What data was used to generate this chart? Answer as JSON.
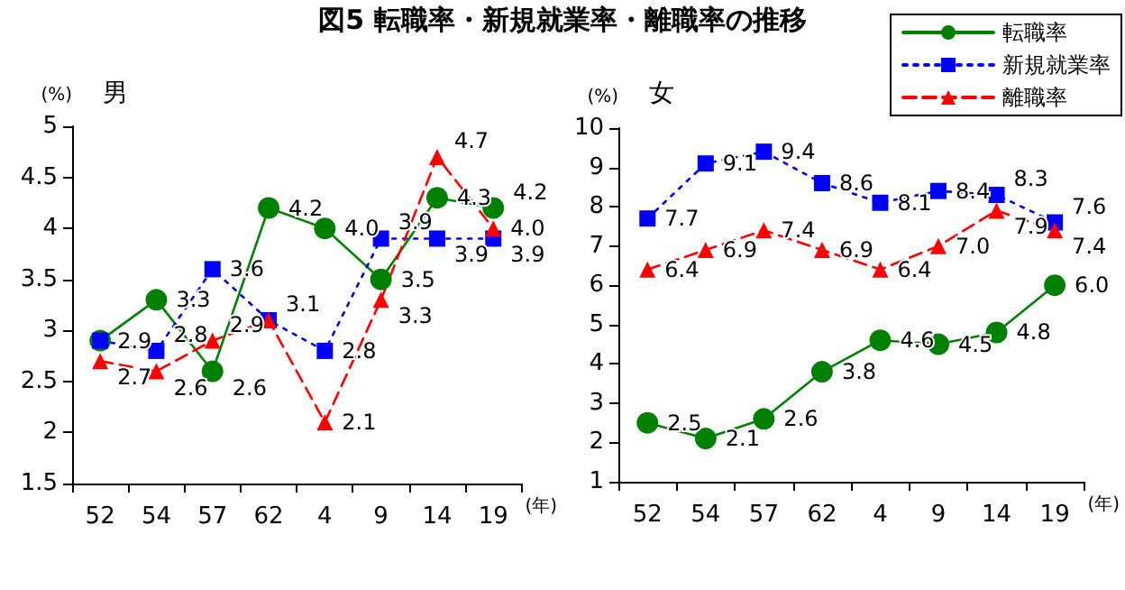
{
  "chart_data": [
    {
      "type": "line",
      "title": "図5 転職率・新規就業率・離職率の推移",
      "subtitle": "男",
      "ylabel": "(%)",
      "xlabel": "(年)",
      "categories": [
        "52",
        "54",
        "57",
        "62",
        "4",
        "9",
        "14",
        "19"
      ],
      "ylim": [
        1.5,
        5
      ],
      "yticks": [
        1.5,
        2,
        2.5,
        3,
        3.5,
        4,
        4.5,
        5
      ],
      "grid": false,
      "legend": false,
      "series": [
        {
          "color": "#008000",
          "marker": "circle",
          "line_style": "solid",
          "values": [
            2.9,
            3.3,
            2.6,
            4.2,
            4.0,
            3.5,
            4.3,
            4.2
          ],
          "value_labels": [
            null,
            "3.3",
            "2.6",
            "4.2",
            "4.0",
            "3.5",
            "4.3",
            "4.2"
          ]
        },
        {
          "color": "#0000ff",
          "marker": "square",
          "line_style": "dotted",
          "values": [
            2.9,
            2.8,
            3.6,
            3.1,
            2.8,
            3.9,
            3.9,
            3.9
          ],
          "value_labels": [
            "2.9",
            "2.8",
            "3.6",
            "3.1",
            "2.8",
            "3.9",
            "3.9",
            "3.9"
          ]
        },
        {
          "color": "#ff0000",
          "marker": "triangle",
          "line_style": "dashed",
          "values": [
            2.7,
            2.6,
            2.9,
            3.1,
            2.1,
            3.3,
            4.7,
            4.0
          ],
          "value_labels": [
            "2.7",
            "2.6",
            "2.9",
            null,
            "2.1",
            "3.3",
            "4.7",
            "4.0"
          ]
        }
      ]
    },
    {
      "type": "line",
      "subtitle": "女",
      "ylabel": "(%)",
      "xlabel": "(年)",
      "categories": [
        "52",
        "54",
        "57",
        "62",
        "4",
        "9",
        "14",
        "19"
      ],
      "ylim": [
        1,
        10
      ],
      "yticks": [
        1,
        2,
        3,
        4,
        5,
        6,
        7,
        8,
        9,
        10
      ],
      "grid": false,
      "legend": "top right",
      "series": [
        {
          "name": "転職率",
          "color": "#008000",
          "marker": "circle",
          "line_style": "solid",
          "values": [
            2.5,
            2.1,
            2.6,
            3.8,
            4.6,
            4.5,
            4.8,
            6.0
          ],
          "value_labels": [
            "2.5",
            "2.1",
            "2.6",
            "3.8",
            "4.6",
            "4.5",
            "4.8",
            "6.0"
          ]
        },
        {
          "name": "新規就業率",
          "color": "#0000ff",
          "marker": "square",
          "line_style": "dotted",
          "values": [
            7.7,
            9.1,
            9.4,
            8.6,
            8.1,
            8.4,
            8.3,
            7.6
          ],
          "value_labels": [
            "7.7",
            "9.1",
            "9.4",
            "8.6",
            "8.1",
            "8.4",
            "8.3",
            "7.6"
          ]
        },
        {
          "name": "離職率",
          "color": "#ff0000",
          "marker": "triangle",
          "line_style": "dashed",
          "values": [
            6.4,
            6.9,
            7.4,
            6.9,
            6.4,
            7.0,
            7.9,
            7.4
          ],
          "value_labels": [
            "6.4",
            "6.9",
            "7.4",
            "6.9",
            "6.4",
            "7.0",
            "7.9",
            "7.4"
          ]
        }
      ]
    }
  ]
}
